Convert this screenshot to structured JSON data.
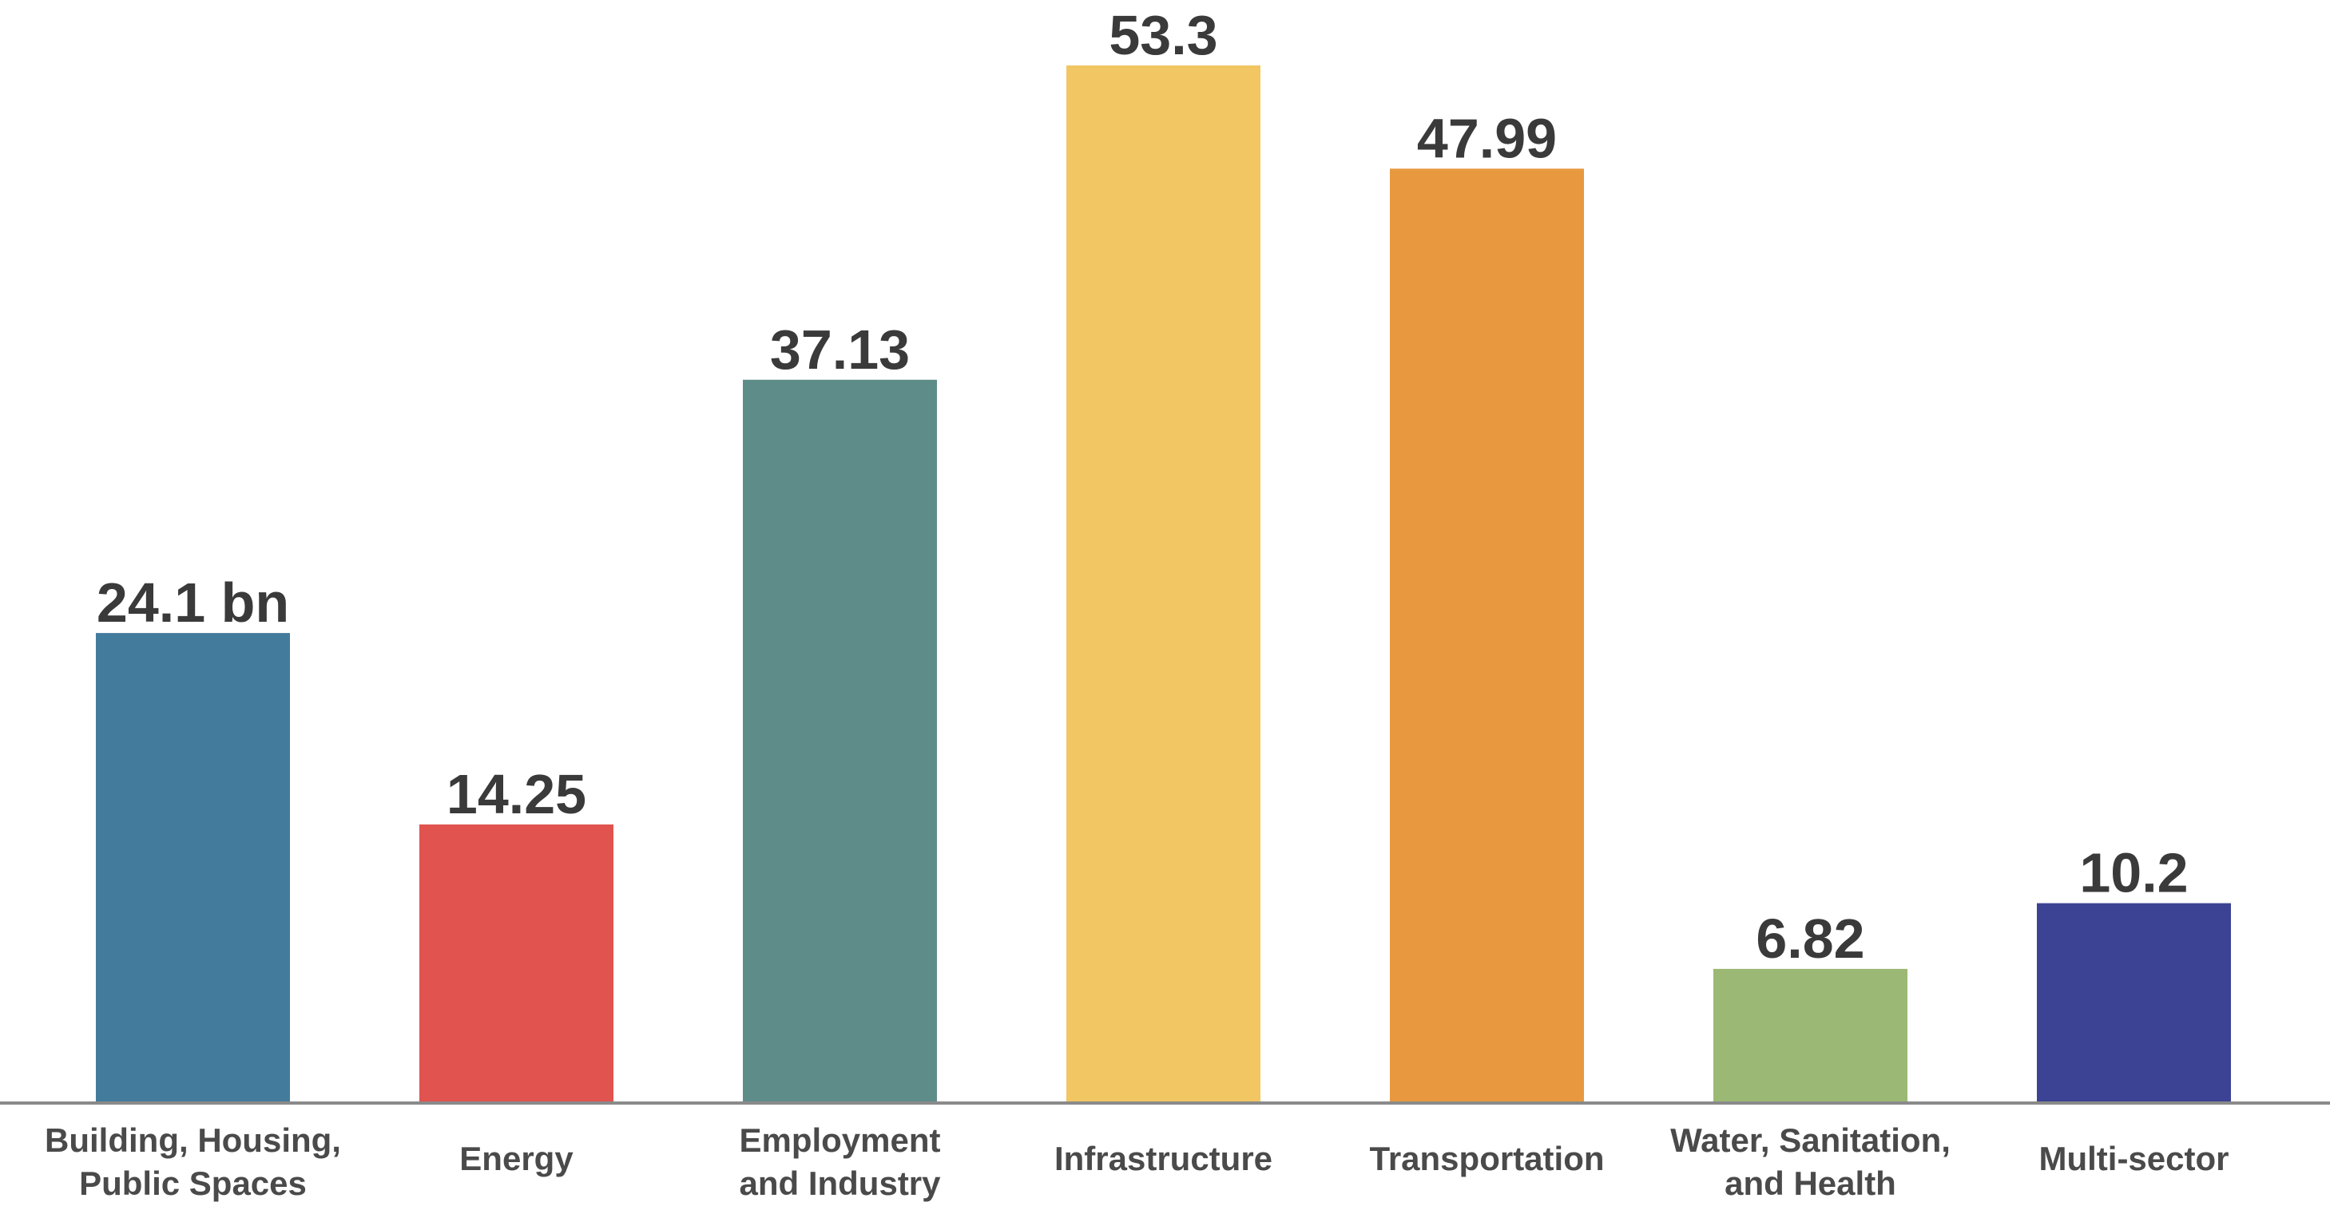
{
  "chart_data": {
    "type": "bar",
    "categories": [
      [
        "Building, Housing,",
        "Public Spaces"
      ],
      [
        "Energy"
      ],
      [
        "Employment",
        "and Industry"
      ],
      [
        "Infrastructure"
      ],
      [
        "Transportation"
      ],
      [
        "Water, Sanitation,",
        "and Health"
      ],
      [
        "Multi-sector"
      ]
    ],
    "values": [
      24.1,
      14.25,
      37.13,
      53.3,
      47.99,
      6.82,
      10.2
    ],
    "value_labels": [
      "24.1 bn",
      "14.25",
      "37.13",
      "53.3",
      "47.99",
      "6.82",
      "10.2"
    ],
    "colors": [
      "#437b9c",
      "#e0534e",
      "#5e8c89",
      "#f1c663",
      "#e8993f",
      "#9bb974",
      "#3c4394"
    ],
    "title": "",
    "xlabel": "",
    "ylabel": "",
    "ylim": [
      0,
      53.3
    ],
    "grid": false,
    "legend": "none",
    "axis_color": "#8a8a8a"
  }
}
